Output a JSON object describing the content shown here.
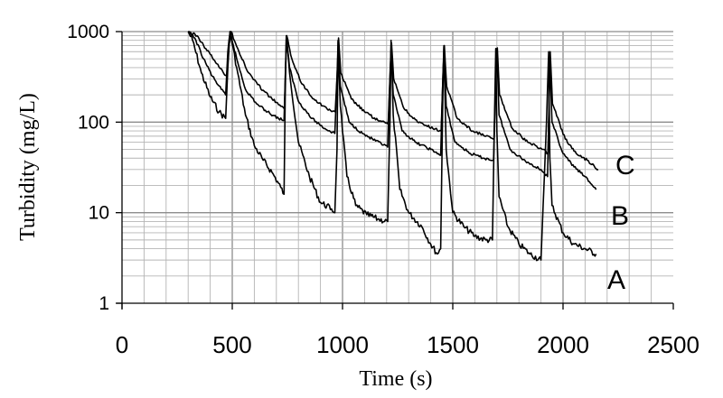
{
  "chart_data": {
    "type": "line",
    "title": "",
    "xlabel": "Time (s)",
    "ylabel": "Turbidity (mg/L)",
    "xlim": [
      0,
      2500
    ],
    "ylim": [
      1,
      1000
    ],
    "yscale": "log",
    "grid": true,
    "x_ticks": [
      "0",
      "500",
      "1000",
      "1500",
      "2000",
      "2500"
    ],
    "y_ticks": [
      "1",
      "10",
      "100",
      "1000"
    ],
    "series": [
      {
        "name": "A",
        "x": [
          300,
          320,
          360,
          400,
          440,
          470,
          480,
          490,
          520,
          560,
          600,
          640,
          680,
          720,
          735,
          740,
          745,
          760,
          800,
          850,
          900,
          950,
          965,
          975,
          980,
          990,
          1020,
          1060,
          1110,
          1160,
          1205,
          1215,
          1220,
          1230,
          1260,
          1300,
          1360,
          1400,
          1430,
          1445,
          1455,
          1460,
          1470,
          1500,
          1550,
          1600,
          1650,
          1680,
          1690,
          1695,
          1700,
          1710,
          1750,
          1800,
          1850,
          1900,
          1925,
          1935,
          1940,
          1950,
          2000,
          2050,
          2100,
          2150
        ],
        "values": [
          1000,
          800,
          350,
          190,
          130,
          110,
          400,
          1000,
          400,
          120,
          55,
          38,
          28,
          19,
          16,
          200,
          900,
          350,
          60,
          25,
          13,
          11,
          10,
          50,
          800,
          150,
          25,
          12,
          9.5,
          8.5,
          8,
          100,
          800,
          120,
          18,
          10,
          7,
          4.5,
          3.5,
          4,
          200,
          700,
          50,
          10,
          7,
          5.5,
          5,
          5,
          150,
          650,
          80,
          15,
          7,
          4.5,
          3.5,
          3,
          100,
          600,
          40,
          12,
          6,
          4.5,
          4,
          3.5
        ]
      },
      {
        "name": "B",
        "x": [
          300,
          330,
          370,
          410,
          450,
          470,
          480,
          490,
          520,
          560,
          610,
          660,
          710,
          735,
          740,
          745,
          760,
          800,
          860,
          920,
          965,
          975,
          980,
          990,
          1030,
          1090,
          1150,
          1205,
          1215,
          1220,
          1230,
          1270,
          1330,
          1400,
          1445,
          1455,
          1460,
          1470,
          1510,
          1580,
          1640,
          1685,
          1695,
          1700,
          1710,
          1760,
          1830,
          1900,
          1930,
          1940,
          1950,
          2000,
          2050,
          2100,
          2150
        ],
        "values": [
          1000,
          850,
          500,
          320,
          230,
          200,
          600,
          1000,
          500,
          230,
          160,
          130,
          110,
          105,
          300,
          850,
          400,
          170,
          110,
          85,
          75,
          300,
          780,
          250,
          100,
          75,
          62,
          53,
          300,
          700,
          200,
          80,
          60,
          50,
          43,
          300,
          680,
          150,
          60,
          45,
          40,
          38,
          300,
          650,
          120,
          50,
          37,
          30,
          25,
          450,
          100,
          45,
          32,
          25,
          18
        ]
      },
      {
        "name": "C",
        "x": [
          300,
          340,
          380,
          420,
          460,
          475,
          485,
          495,
          525,
          565,
          615,
          670,
          720,
          737,
          742,
          747,
          765,
          810,
          870,
          930,
          967,
          977,
          982,
          992,
          1040,
          1100,
          1160,
          1207,
          1217,
          1222,
          1232,
          1280,
          1340,
          1410,
          1447,
          1457,
          1462,
          1472,
          1520,
          1590,
          1650,
          1687,
          1697,
          1702,
          1712,
          1770,
          1840,
          1910,
          1932,
          1942,
          1952,
          2010,
          2060,
          2110,
          2160
        ],
        "values": [
          1000,
          900,
          650,
          480,
          350,
          330,
          700,
          1000,
          650,
          380,
          260,
          190,
          150,
          140,
          400,
          900,
          550,
          280,
          180,
          140,
          130,
          400,
          850,
          350,
          180,
          130,
          105,
          95,
          400,
          750,
          300,
          140,
          100,
          85,
          80,
          400,
          700,
          250,
          110,
          80,
          70,
          65,
          400,
          660,
          200,
          85,
          60,
          50,
          45,
          600,
          160,
          65,
          45,
          38,
          30
        ]
      }
    ]
  }
}
